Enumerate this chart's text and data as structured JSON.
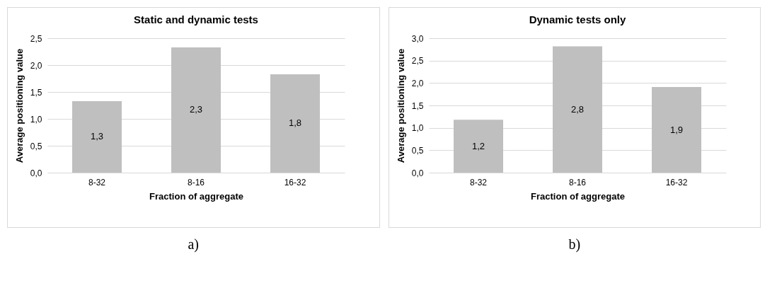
{
  "chart_data": [
    {
      "type": "bar",
      "title": "Static and dynamic tests",
      "xlabel": "Fraction of aggregate",
      "ylabel": "Average positioning value",
      "categories": [
        "8-32",
        "8-16",
        "16-32"
      ],
      "values": [
        1.33,
        2.33,
        1.83
      ],
      "value_labels": [
        "1,3",
        "2,3",
        "1,8"
      ],
      "color": "#bfbfbf",
      "ylim": [
        0,
        2.5
      ],
      "yticks": [
        {
          "value": 0,
          "label": "0,0"
        },
        {
          "value": 0.5,
          "label": "0,5"
        },
        {
          "value": 1,
          "label": "1,0"
        },
        {
          "value": 1.5,
          "label": "1,5"
        },
        {
          "value": 2,
          "label": "2,0"
        },
        {
          "value": 2.5,
          "label": "2,5"
        }
      ],
      "grid": "y",
      "annotations": [
        "a)"
      ]
    },
    {
      "type": "bar",
      "title": "Dynamic tests only",
      "xlabel": "Fraction of aggregate",
      "ylabel": "Average positioning value",
      "categories": [
        "8-32",
        "8-16",
        "16-32"
      ],
      "values": [
        1.18,
        2.82,
        1.91
      ],
      "value_labels": [
        "1,2",
        "2,8",
        "1,9"
      ],
      "color": "#bfbfbf",
      "ylim": [
        0,
        3
      ],
      "yticks": [
        {
          "value": 0,
          "label": "0,0"
        },
        {
          "value": 0.5,
          "label": "0,5"
        },
        {
          "value": 1,
          "label": "1,0"
        },
        {
          "value": 1.5,
          "label": "1,5"
        },
        {
          "value": 2,
          "label": "2,0"
        },
        {
          "value": 2.5,
          "label": "2,5"
        },
        {
          "value": 3,
          "label": "3,0"
        }
      ],
      "grid": "y",
      "annotations": [
        "b)"
      ]
    }
  ]
}
